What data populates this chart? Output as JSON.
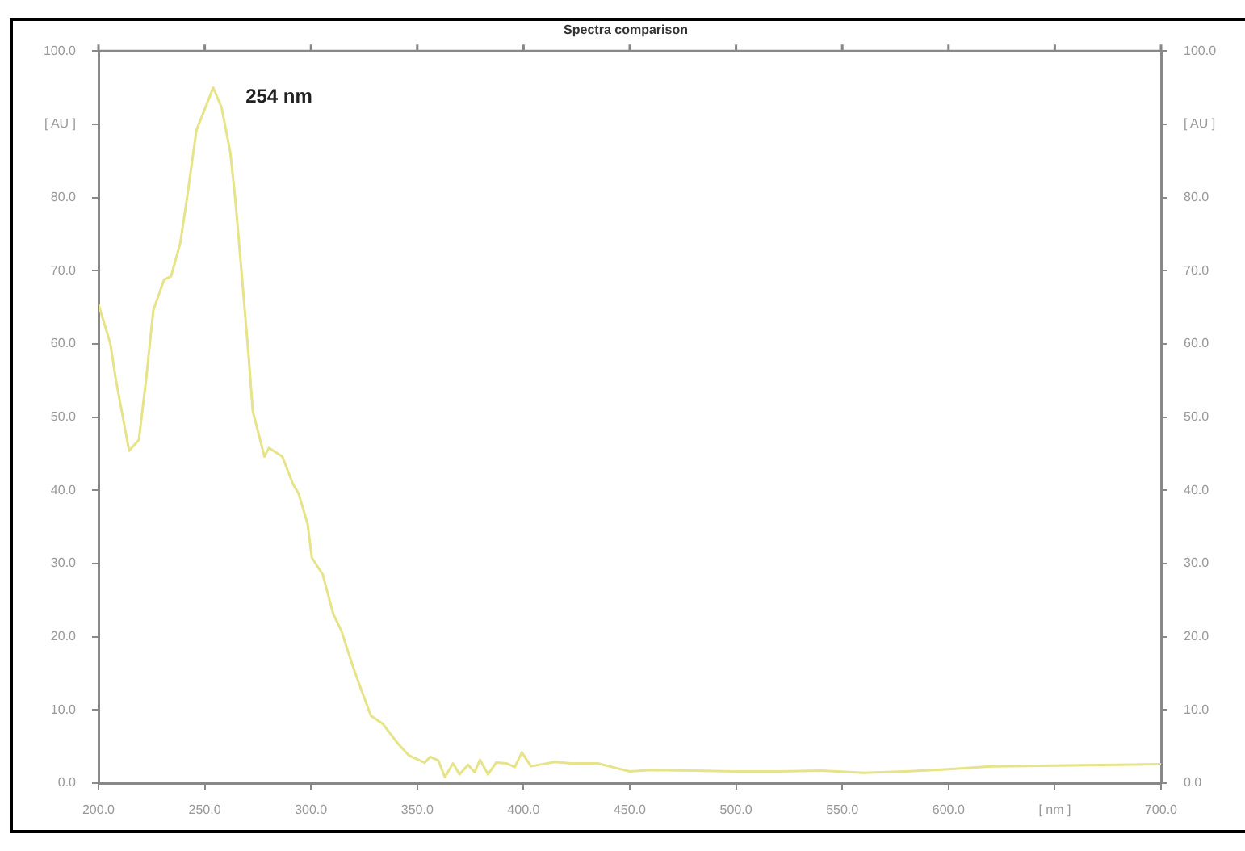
{
  "chart_data": {
    "type": "line",
    "title": "Spectra comparison",
    "x": [
      200,
      205.6,
      208,
      214.4,
      219,
      222.5,
      225.8,
      230.9,
      234.1,
      238.5,
      241.7,
      246.1,
      254,
      257.9,
      262,
      264.3,
      267.5,
      270.6,
      272.6,
      278.1,
      280.2,
      286.5,
      291.6,
      294.1,
      298.4,
      300.4,
      305.5,
      310.5,
      314.3,
      319.4,
      322.7,
      328.2,
      333.8,
      340.9,
      346,
      353.5,
      356.1,
      359.9,
      363,
      366.8,
      369.9,
      373.9,
      377,
      379.5,
      383.3,
      387.1,
      392.1,
      395.9,
      399.2,
      403.5,
      414.8,
      422.4,
      435,
      450,
      460,
      480,
      500,
      520,
      540,
      560,
      580,
      600,
      620,
      650,
      680,
      700
    ],
    "series": [
      {
        "color": "#e6e388",
        "values": [
          65.4,
          60,
          55.4,
          45.4,
          46.9,
          55.4,
          64.6,
          68.8,
          69.2,
          73.8,
          80,
          89.2,
          95,
          92.3,
          86.2,
          80,
          69.2,
          58.5,
          50.8,
          44.6,
          45.8,
          44.6,
          40.8,
          39.6,
          35.4,
          30.8,
          28.5,
          23.1,
          20.8,
          16.2,
          13.5,
          9.2,
          8.1,
          5.4,
          3.8,
          2.8,
          3.6,
          3.1,
          0.8,
          2.7,
          1.2,
          2.5,
          1.5,
          3.2,
          1.2,
          2.8,
          2.7,
          2.2,
          4.2,
          2.3,
          2.9,
          2.7,
          2.7,
          1.6,
          1.8,
          1.7,
          1.6,
          1.6,
          1.7,
          1.4,
          1.6,
          1.9,
          2.3,
          2.4,
          2.5,
          2.6
        ]
      }
    ],
    "xlim": [
      200,
      700
    ],
    "xticks": [
      {
        "value": 200,
        "label": "200.0"
      },
      {
        "value": 250,
        "label": "250.0"
      },
      {
        "value": 300,
        "label": "300.0"
      },
      {
        "value": 350,
        "label": "350.0"
      },
      {
        "value": 400,
        "label": "400.0"
      },
      {
        "value": 450,
        "label": "450.0"
      },
      {
        "value": 500,
        "label": "500.0"
      },
      {
        "value": 550,
        "label": "550.0"
      },
      {
        "value": 600,
        "label": "600.0"
      },
      {
        "value": 650,
        "label": "[ nm ]"
      },
      {
        "value": 700,
        "label": "700.0"
      }
    ],
    "ylim": [
      0,
      100
    ],
    "yticks": [
      {
        "value": 0,
        "label": "0.0"
      },
      {
        "value": 10,
        "label": "10.0"
      },
      {
        "value": 20,
        "label": "20.0"
      },
      {
        "value": 30,
        "label": "30.0"
      },
      {
        "value": 40,
        "label": "40.0"
      },
      {
        "value": 50,
        "label": "50.0"
      },
      {
        "value": 60,
        "label": "60.0"
      },
      {
        "value": 70,
        "label": "70.0"
      },
      {
        "value": 80,
        "label": "80.0"
      },
      {
        "value": 90,
        "label": "[ AU ]"
      },
      {
        "value": 100,
        "label": "100.0"
      }
    ],
    "y2lim": [
      0,
      100
    ],
    "y2ticks": [
      {
        "value": 0,
        "label": "0.0"
      },
      {
        "value": 10,
        "label": "10.0"
      },
      {
        "value": 20,
        "label": "20.0"
      },
      {
        "value": 30,
        "label": "30.0"
      },
      {
        "value": 40,
        "label": "40.0"
      },
      {
        "value": 50,
        "label": "50.0"
      },
      {
        "value": 60,
        "label": "60.0"
      },
      {
        "value": 70,
        "label": "70.0"
      },
      {
        "value": 80,
        "label": "80.0"
      },
      {
        "value": 90,
        "label": "[ AU ]"
      },
      {
        "value": 100,
        "label": "100.0"
      }
    ],
    "annotations": [
      {
        "text": "254 nm",
        "x": 254,
        "y": 95
      }
    ],
    "grid": false,
    "legend": false,
    "marker": "none",
    "line_style": "solid"
  }
}
